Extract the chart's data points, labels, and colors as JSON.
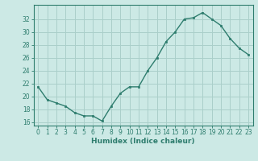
{
  "x": [
    0,
    1,
    2,
    3,
    4,
    5,
    6,
    7,
    8,
    9,
    10,
    11,
    12,
    13,
    14,
    15,
    16,
    17,
    18,
    19,
    20,
    21,
    22,
    23
  ],
  "y": [
    21.5,
    19.5,
    19.0,
    18.5,
    17.5,
    17.0,
    17.0,
    16.2,
    18.5,
    20.5,
    21.5,
    21.5,
    24.0,
    26.0,
    28.5,
    30.0,
    32.0,
    32.2,
    33.0,
    32.0,
    31.0,
    29.0,
    27.5,
    26.5
  ],
  "xlabel": "Humidex (Indice chaleur)",
  "ylabel": "",
  "ylim": [
    15.5,
    34.2
  ],
  "xlim": [
    -0.5,
    23.5
  ],
  "yticks": [
    16,
    18,
    20,
    22,
    24,
    26,
    28,
    30,
    32
  ],
  "xticks": [
    0,
    1,
    2,
    3,
    4,
    5,
    6,
    7,
    8,
    9,
    10,
    11,
    12,
    13,
    14,
    15,
    16,
    17,
    18,
    19,
    20,
    21,
    22,
    23
  ],
  "line_color": "#2e7d6e",
  "marker_color": "#2e7d6e",
  "bg_color": "#cce9e5",
  "grid_color": "#aacfca",
  "axis_color": "#2e7d6e",
  "tick_fontsize": 5.5,
  "xlabel_fontsize": 6.5
}
